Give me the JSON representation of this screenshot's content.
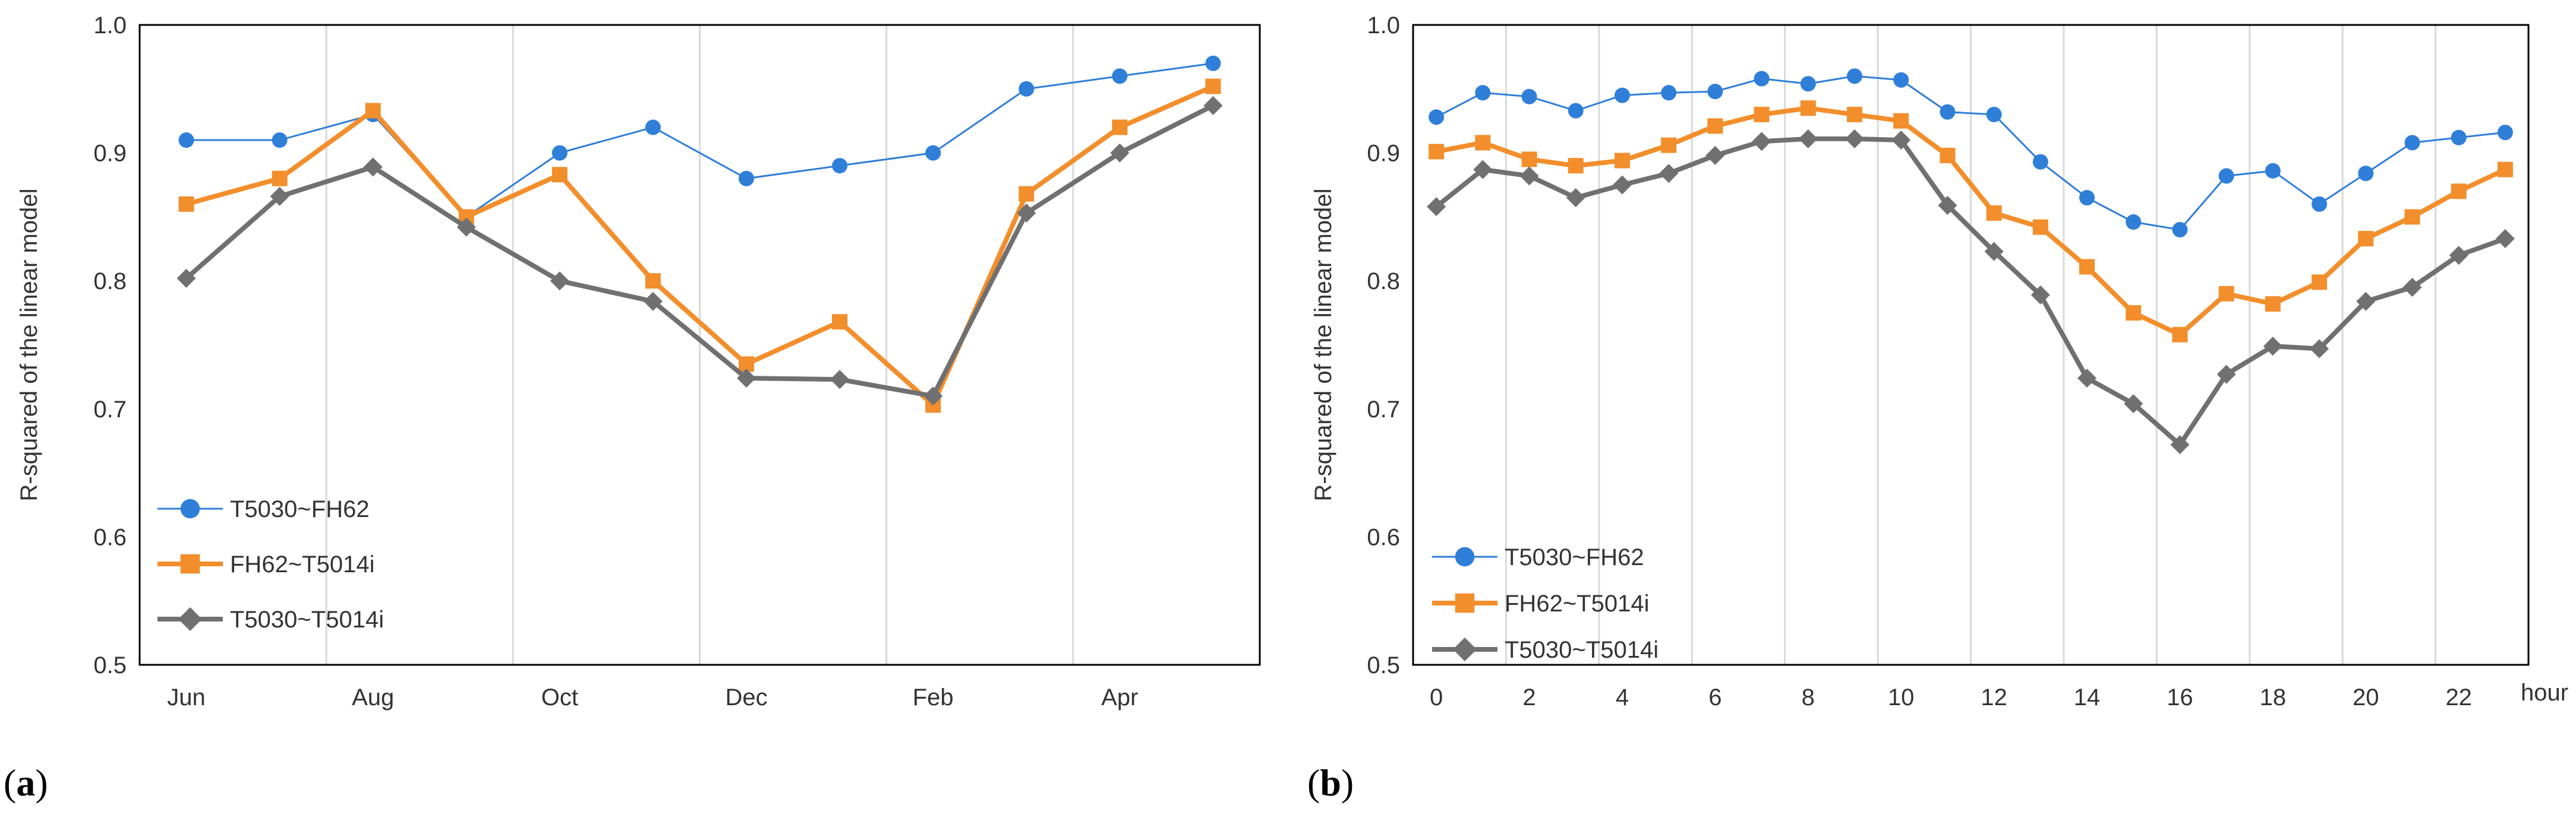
{
  "colors": {
    "series1": "#2F7ED8",
    "series2": "#F28E2B",
    "series3": "#707070",
    "grid": "#D9D9D9",
    "frame": "#000000"
  },
  "chart_data": [
    {
      "panel": "a",
      "panel_label": {
        "open": "(",
        "letter": "a",
        "close": ")"
      },
      "type": "line",
      "title": "",
      "xlabel": "",
      "ylabel": "R-squared of the linear model",
      "ylim": [
        0.5,
        1.0
      ],
      "yticks": [
        "0.5",
        "0.6",
        "0.7",
        "0.8",
        "0.9",
        "1.0"
      ],
      "grid": "vertical",
      "legend_position": "bottom-left",
      "x": [
        0,
        1,
        2,
        3,
        4,
        5,
        6,
        7,
        8,
        9,
        10,
        11
      ],
      "xticks": [
        {
          "x": 0,
          "label": "Jun"
        },
        {
          "x": 2,
          "label": "Aug"
        },
        {
          "x": 4,
          "label": "Oct"
        },
        {
          "x": 6,
          "label": "Dec"
        },
        {
          "x": 8,
          "label": "Feb"
        },
        {
          "x": 10,
          "label": "Apr"
        }
      ],
      "xlim": [
        -0.5,
        11.5
      ],
      "series": [
        {
          "name": "T5030~FH62",
          "marker": "circle",
          "color_key": "series1",
          "width": "thin",
          "values": [
            0.91,
            0.91,
            0.93,
            0.85,
            0.9,
            0.92,
            0.88,
            0.89,
            0.9,
            0.95,
            0.96,
            0.97
          ]
        },
        {
          "name": "FH62~T5014i",
          "marker": "square",
          "color_key": "series2",
          "width": "thick",
          "values": [
            0.86,
            0.88,
            0.933,
            0.85,
            0.883,
            0.8,
            0.735,
            0.768,
            0.703,
            0.868,
            0.92,
            0.952
          ]
        },
        {
          "name": "T5030~T5014i",
          "marker": "diamond",
          "color_key": "series3",
          "width": "thick",
          "values": [
            0.802,
            0.866,
            0.889,
            0.842,
            0.8,
            0.784,
            0.724,
            0.723,
            0.71,
            0.853,
            0.9,
            0.937
          ]
        }
      ]
    },
    {
      "panel": "b",
      "panel_label": {
        "open": "(",
        "letter": "b",
        "close": ")"
      },
      "type": "line",
      "title": "",
      "xlabel": "hour",
      "ylabel": "R-squared of the linear model",
      "ylim": [
        0.5,
        1.0
      ],
      "yticks": [
        "0.5",
        "0.6",
        "0.7",
        "0.8",
        "0.9",
        "1.0"
      ],
      "grid": "vertical",
      "legend_position": "bottom-left",
      "x": [
        0,
        1,
        2,
        3,
        4,
        5,
        6,
        7,
        8,
        9,
        10,
        11,
        12,
        13,
        14,
        15,
        16,
        17,
        18,
        19,
        20,
        21,
        22,
        23
      ],
      "xticks": [
        {
          "x": 0,
          "label": "0"
        },
        {
          "x": 2,
          "label": "2"
        },
        {
          "x": 4,
          "label": "4"
        },
        {
          "x": 6,
          "label": "6"
        },
        {
          "x": 8,
          "label": "8"
        },
        {
          "x": 10,
          "label": "10"
        },
        {
          "x": 12,
          "label": "12"
        },
        {
          "x": 14,
          "label": "14"
        },
        {
          "x": 16,
          "label": "16"
        },
        {
          "x": 18,
          "label": "18"
        },
        {
          "x": 20,
          "label": "20"
        },
        {
          "x": 22,
          "label": "22"
        }
      ],
      "xlim": [
        -0.5,
        23.5
      ],
      "series": [
        {
          "name": "T5030~FH62",
          "marker": "circle",
          "color_key": "series1",
          "width": "thin",
          "values": [
            0.928,
            0.947,
            0.944,
            0.933,
            0.945,
            0.947,
            0.948,
            0.958,
            0.954,
            0.96,
            0.957,
            0.932,
            0.93,
            0.893,
            0.865,
            0.846,
            0.84,
            0.882,
            0.886,
            0.86,
            0.884,
            0.908,
            0.912,
            0.916
          ]
        },
        {
          "name": "FH62~T5014i",
          "marker": "square",
          "color_key": "series2",
          "width": "thick",
          "values": [
            0.901,
            0.908,
            0.895,
            0.89,
            0.894,
            0.906,
            0.921,
            0.93,
            0.935,
            0.93,
            0.925,
            0.898,
            0.853,
            0.842,
            0.811,
            0.775,
            0.758,
            0.79,
            0.782,
            0.799,
            0.833,
            0.85,
            0.87,
            0.887
          ]
        },
        {
          "name": "T5030~T5014i",
          "marker": "diamond",
          "color_key": "series3",
          "width": "thick",
          "values": [
            0.858,
            0.887,
            0.882,
            0.865,
            0.875,
            0.884,
            0.898,
            0.909,
            0.911,
            0.911,
            0.91,
            0.859,
            0.823,
            0.789,
            0.724,
            0.704,
            0.672,
            0.727,
            0.749,
            0.747,
            0.784,
            0.795,
            0.82,
            0.833
          ]
        }
      ]
    }
  ]
}
